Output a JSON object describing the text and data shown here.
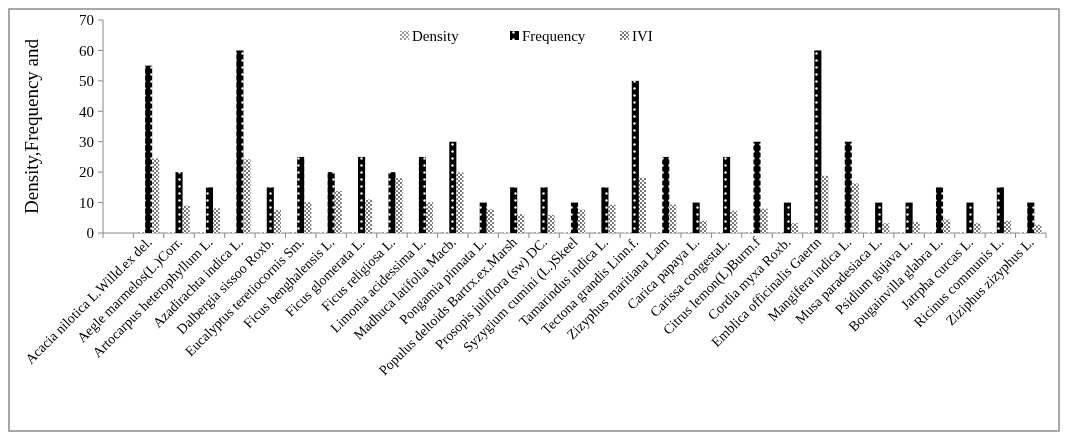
{
  "chart_data": {
    "type": "bar",
    "ylabel": "Density,Frequency and",
    "categories": [
      null,
      "Acacia nilotica L.Willd.ex del.",
      "Aegle marmelos(L.)Corr.",
      "Artocarpus heterophyllum L.",
      "Azadirachta indica L.",
      "Dalbergia sissoo Roxb.",
      "Eucalyptus teretiocornis Sm.",
      "Ficus benghalensis L.",
      "Ficus glomerata L.",
      "Ficus religiosa L.",
      "Limonia acidessima L.",
      "Madhuca latifolia Macb.",
      "Pongamia pinnata L.",
      "Populus deltoids Bartrx.ex.Marsh",
      "Prosopis juliflora (sw) DC.",
      "Syzygium cumini (L.)Skeel",
      "Tamarindus indica L.",
      "Tectona grandis Linn.f.",
      "Zizyphus maritiana Lam",
      "Carica papaya L.",
      "Carissa congestaL.",
      "Citrus lemon(L)Burm.f",
      "Cordia myxa Roxb.",
      "Emblica officinalis Gaertn",
      "Mangifera indica L.",
      "Musa paradesiaca L.",
      "Psidium gujava L.",
      "Bougainvilla glabra L.",
      "Jatrpha curcas L.",
      "Ricinus communis L.",
      "Ziziphus zizyphus L."
    ],
    "series": [
      {
        "name": "Density",
        "color": "#9a9a9a",
        "values": [
          null,
          0.3,
          0.3,
          0.3,
          0.3,
          0.3,
          0.3,
          0.3,
          0.3,
          0.3,
          0.3,
          0.3,
          0.3,
          0.3,
          0.3,
          0.3,
          0.3,
          0.3,
          0.3,
          0.3,
          0.3,
          0.3,
          0.3,
          0.3,
          0.3,
          0.3,
          0.3,
          0.3,
          0.3,
          0.3,
          0.3
        ]
      },
      {
        "name": "Frequency",
        "color": "#000000",
        "values": [
          null,
          55,
          20,
          15,
          60,
          15,
          25,
          20,
          25,
          20,
          25,
          30,
          10,
          15,
          15,
          10,
          15,
          50,
          25,
          10,
          25,
          30,
          10,
          60,
          30,
          10,
          10,
          15,
          10,
          15,
          10
        ]
      },
      {
        "name": "IVI",
        "color": "#7a7a7a",
        "values": [
          null,
          24.5,
          9,
          8.1,
          24.2,
          7.6,
          10.1,
          13.8,
          11,
          18,
          10.1,
          19.9,
          7.8,
          6.2,
          5.9,
          7.7,
          9.3,
          18.2,
          9.3,
          4,
          7.3,
          8,
          3.2,
          18.8,
          16.3,
          3.2,
          3.6,
          4.5,
          3.2,
          4,
          2.7
        ]
      }
    ],
    "ylim": [
      0,
      70
    ],
    "yticks": [
      0,
      10,
      20,
      30,
      40,
      50,
      60,
      70
    ],
    "grid": false,
    "legend": "top"
  }
}
